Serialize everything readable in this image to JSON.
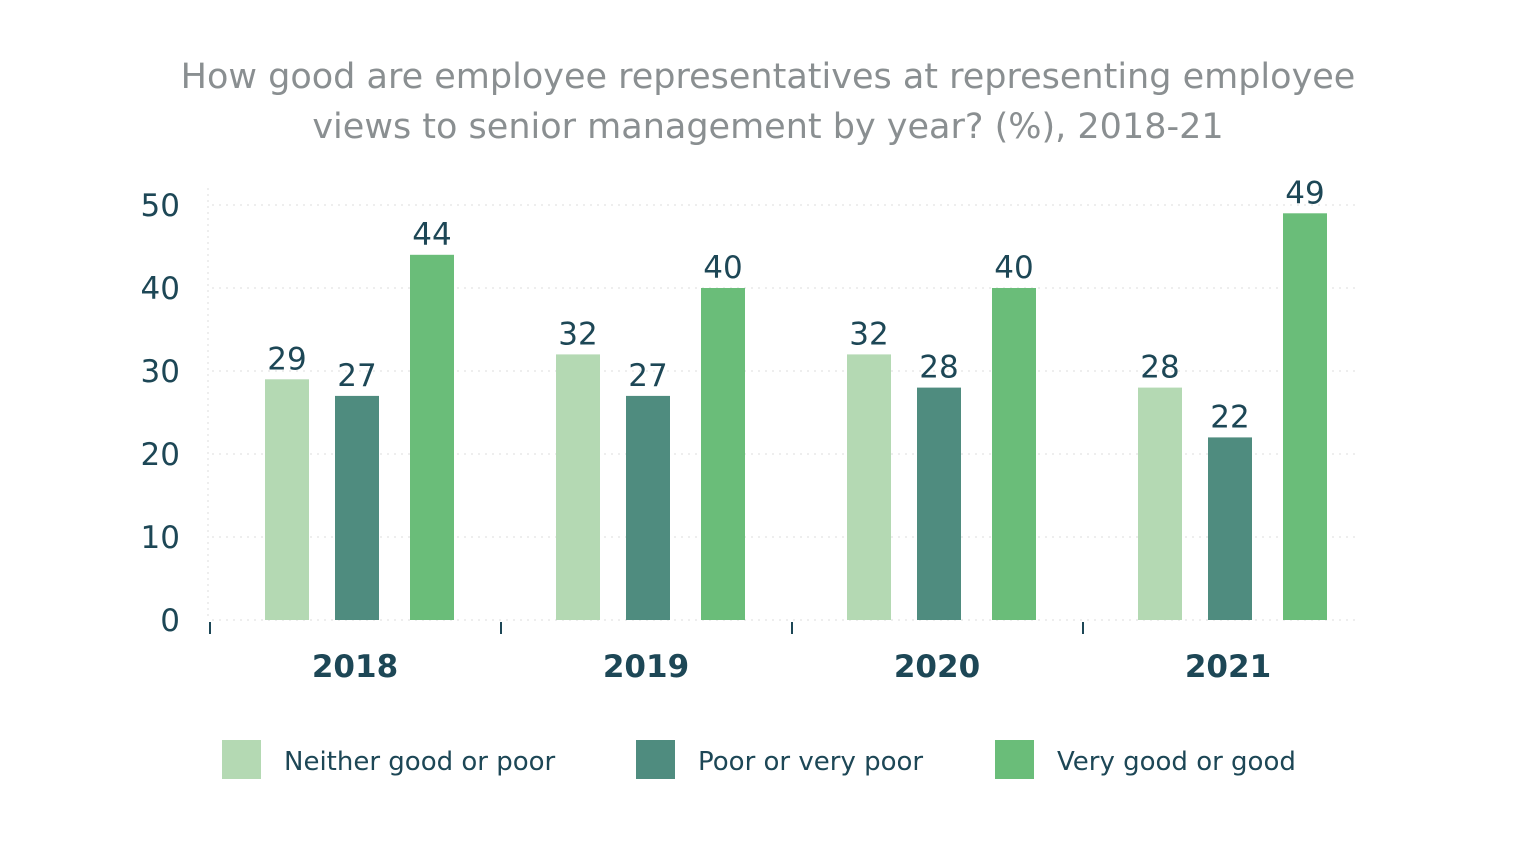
{
  "chart_data": {
    "type": "bar",
    "title": "How good are employee representatives at representing employee views to senior management by year? (%), 2018-21",
    "title_lines": [
      "How good are employee representatives at representing employee",
      "views to senior management by year? (%), 2018-21"
    ],
    "categories": [
      "2018",
      "2019",
      "2020",
      "2021"
    ],
    "series": [
      {
        "name": "Neither good or poor",
        "color": "#b4d9b3",
        "values": [
          29,
          32,
          32,
          28
        ]
      },
      {
        "name": "Poor or very poor",
        "color": "#4f8c7f",
        "values": [
          27,
          27,
          28,
          22
        ]
      },
      {
        "name": "Very good or good",
        "color": "#6abd79",
        "values": [
          44,
          40,
          40,
          49
        ]
      }
    ],
    "yticks": [
      "0",
      "10",
      "20",
      "30",
      "40",
      "50"
    ],
    "ylim": [
      0,
      50
    ],
    "grid": true,
    "legend": "bottom",
    "xlabel": "",
    "ylabel": ""
  }
}
